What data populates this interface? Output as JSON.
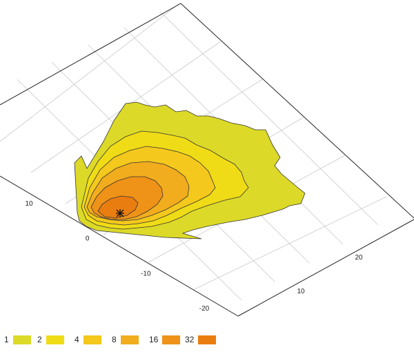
{
  "chart_data": {
    "type": "contour",
    "title": "",
    "xlabel": "",
    "ylabel": "",
    "x_ticks": [
      10,
      20
    ],
    "y_ticks": [
      -20,
      -10,
      0,
      10
    ],
    "grid": true,
    "legend_placement": "bottom",
    "levels": [
      {
        "label": "1",
        "color": "#dcd928"
      },
      {
        "label": "2",
        "color": "#f0dc16"
      },
      {
        "label": "4",
        "color": "#f4c81c"
      },
      {
        "label": "8",
        "color": "#f2ad1e"
      },
      {
        "label": "16",
        "color": "#ee9218"
      },
      {
        "label": "32",
        "color": "#ea7d10"
      }
    ],
    "source_marker": "*"
  }
}
